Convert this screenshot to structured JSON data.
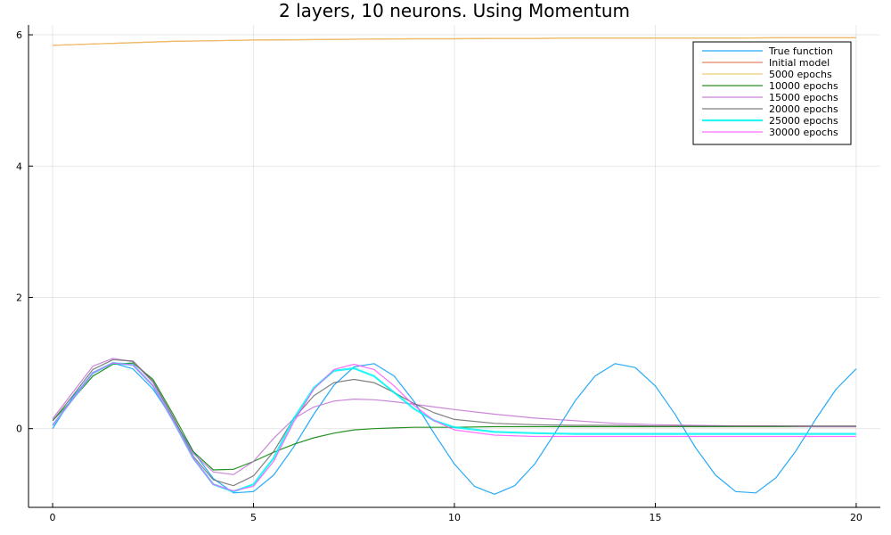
{
  "chart_data": {
    "type": "line",
    "title": "2 layers, 10 neurons. Using Momentum",
    "xlabel": "",
    "ylabel": "",
    "xlim": [
      -0.6,
      20.6
    ],
    "ylim": [
      -1.2,
      6.15
    ],
    "xticks": [
      0,
      5,
      10,
      15,
      20
    ],
    "yticks": [
      0,
      2,
      4,
      6
    ],
    "grid": true,
    "legend_position": "top-right",
    "series": [
      {
        "name": "True function",
        "color": "#009af9",
        "width": 1.2,
        "x": [
          0,
          0.5,
          1,
          1.5,
          2,
          2.5,
          3,
          3.5,
          4,
          4.5,
          5,
          5.5,
          6,
          6.5,
          7,
          7.5,
          8,
          8.5,
          9,
          9.5,
          10,
          10.5,
          11,
          11.5,
          12,
          12.5,
          13,
          13.5,
          14,
          14.5,
          15,
          15.5,
          16,
          16.5,
          17,
          17.5,
          18,
          18.5,
          19,
          19.5,
          20
        ],
        "y": [
          0,
          0.48,
          0.84,
          1.0,
          0.91,
          0.6,
          0.14,
          -0.35,
          -0.76,
          -0.98,
          -0.96,
          -0.71,
          -0.28,
          0.22,
          0.66,
          0.94,
          0.99,
          0.8,
          0.41,
          -0.08,
          -0.54,
          -0.88,
          -1.0,
          -0.87,
          -0.54,
          -0.07,
          0.42,
          0.8,
          0.99,
          0.93,
          0.65,
          0.21,
          -0.29,
          -0.71,
          -0.96,
          -0.98,
          -0.75,
          -0.34,
          0.15,
          0.6,
          0.91
        ]
      },
      {
        "name": "Initial model",
        "color": "#e26f46",
        "width": 1.2,
        "x": [
          0,
          1,
          2,
          3,
          4,
          5,
          6,
          7,
          8,
          9,
          10,
          11,
          12,
          13,
          14,
          15,
          16,
          17,
          18,
          19,
          20
        ],
        "y": [
          5.84,
          5.86,
          5.88,
          5.9,
          5.91,
          5.92,
          5.925,
          5.93,
          5.935,
          5.94,
          5.94,
          5.945,
          5.945,
          5.95,
          5.95,
          5.95,
          5.95,
          5.95,
          5.955,
          5.955,
          5.955
        ]
      },
      {
        "name": "5000 epochs",
        "color": "#f0c760",
        "width": 1.2,
        "x": [
          0,
          1,
          2,
          3,
          4,
          5,
          6,
          7,
          8,
          9,
          10,
          11,
          12,
          13,
          14,
          15,
          16,
          17,
          18,
          19,
          20
        ],
        "y": [
          5.84,
          5.86,
          5.88,
          5.9,
          5.91,
          5.92,
          5.925,
          5.93,
          5.935,
          5.94,
          5.94,
          5.945,
          5.945,
          5.95,
          5.95,
          5.95,
          5.95,
          5.95,
          5.955,
          5.955,
          5.955
        ]
      },
      {
        "name": "10000 epochs",
        "color": "#008000",
        "width": 1.2,
        "x": [
          0,
          0.5,
          1,
          1.5,
          2,
          2.5,
          3,
          3.5,
          4,
          4.5,
          5,
          5.5,
          6,
          6.5,
          7,
          7.5,
          8,
          8.5,
          9,
          9.5,
          10,
          11,
          12,
          13,
          14,
          15,
          16,
          17,
          18,
          19,
          20
        ],
        "y": [
          0.12,
          0.45,
          0.8,
          0.98,
          1.0,
          0.75,
          0.22,
          -0.35,
          -0.63,
          -0.62,
          -0.5,
          -0.36,
          -0.24,
          -0.14,
          -0.07,
          -0.02,
          0.0,
          0.01,
          0.02,
          0.02,
          0.02,
          0.03,
          0.03,
          0.03,
          0.03,
          0.03,
          0.03,
          0.03,
          0.03,
          0.03,
          0.03
        ]
      },
      {
        "name": "15000 epochs",
        "color": "#c271d2",
        "width": 1.2,
        "x": [
          0,
          0.5,
          1,
          1.5,
          2,
          2.5,
          3,
          3.5,
          4,
          4.5,
          5,
          5.5,
          6,
          6.5,
          7,
          7.5,
          8,
          8.5,
          9,
          9.5,
          10,
          11,
          12,
          13,
          14,
          15,
          16,
          17,
          18,
          19,
          20
        ],
        "y": [
          0.15,
          0.55,
          0.95,
          1.07,
          1.02,
          0.7,
          0.15,
          -0.38,
          -0.66,
          -0.7,
          -0.5,
          -0.15,
          0.15,
          0.33,
          0.42,
          0.45,
          0.44,
          0.41,
          0.37,
          0.33,
          0.29,
          0.22,
          0.16,
          0.12,
          0.08,
          0.06,
          0.05,
          0.04,
          0.04,
          0.03,
          0.03
        ]
      },
      {
        "name": "20000 epochs",
        "color": "#6b6b6b",
        "width": 1.2,
        "x": [
          0,
          0.5,
          1,
          1.5,
          2,
          2.5,
          3,
          3.5,
          4,
          4.5,
          5,
          5.5,
          6,
          6.5,
          7,
          7.5,
          8,
          8.5,
          9,
          9.5,
          10,
          11,
          12,
          13,
          14,
          15,
          16,
          17,
          18,
          19,
          20
        ],
        "y": [
          0.12,
          0.5,
          0.9,
          1.05,
          1.03,
          0.72,
          0.18,
          -0.42,
          -0.78,
          -0.87,
          -0.72,
          -0.35,
          0.15,
          0.5,
          0.7,
          0.75,
          0.7,
          0.55,
          0.38,
          0.24,
          0.14,
          0.08,
          0.06,
          0.05,
          0.05,
          0.04,
          0.04,
          0.04,
          0.04,
          0.04,
          0.04
        ]
      },
      {
        "name": "25000 epochs",
        "color": "#00f5f5",
        "width": 2.2,
        "x": [
          0,
          0.5,
          1,
          1.5,
          2,
          2.5,
          3,
          3.5,
          4,
          4.5,
          5,
          5.5,
          6,
          6.5,
          7,
          7.5,
          8,
          8.5,
          9,
          9.5,
          10,
          11,
          12,
          13,
          14,
          15,
          16,
          17,
          18,
          19,
          20
        ],
        "y": [
          0.05,
          0.45,
          0.85,
          1.0,
          0.97,
          0.65,
          0.12,
          -0.45,
          -0.85,
          -0.96,
          -0.85,
          -0.45,
          0.15,
          0.62,
          0.88,
          0.92,
          0.8,
          0.55,
          0.3,
          0.12,
          0.02,
          -0.05,
          -0.07,
          -0.08,
          -0.08,
          -0.08,
          -0.08,
          -0.08,
          -0.08,
          -0.08,
          -0.08
        ]
      },
      {
        "name": "30000 epochs",
        "color": "#ff55ff",
        "width": 1.2,
        "x": [
          0,
          0.5,
          1,
          1.5,
          2,
          2.5,
          3,
          3.5,
          4,
          4.5,
          5,
          5.5,
          6,
          6.5,
          7,
          7.5,
          8,
          8.5,
          9,
          9.5,
          10,
          11,
          12,
          13,
          14,
          15,
          16,
          17,
          18,
          19,
          20
        ],
        "y": [
          0.05,
          0.45,
          0.85,
          1.0,
          0.97,
          0.65,
          0.12,
          -0.45,
          -0.85,
          -0.95,
          -0.88,
          -0.5,
          0.1,
          0.6,
          0.9,
          0.98,
          0.9,
          0.65,
          0.35,
          0.12,
          -0.02,
          -0.1,
          -0.12,
          -0.12,
          -0.12,
          -0.12,
          -0.12,
          -0.12,
          -0.12,
          -0.12,
          -0.12
        ]
      }
    ]
  }
}
